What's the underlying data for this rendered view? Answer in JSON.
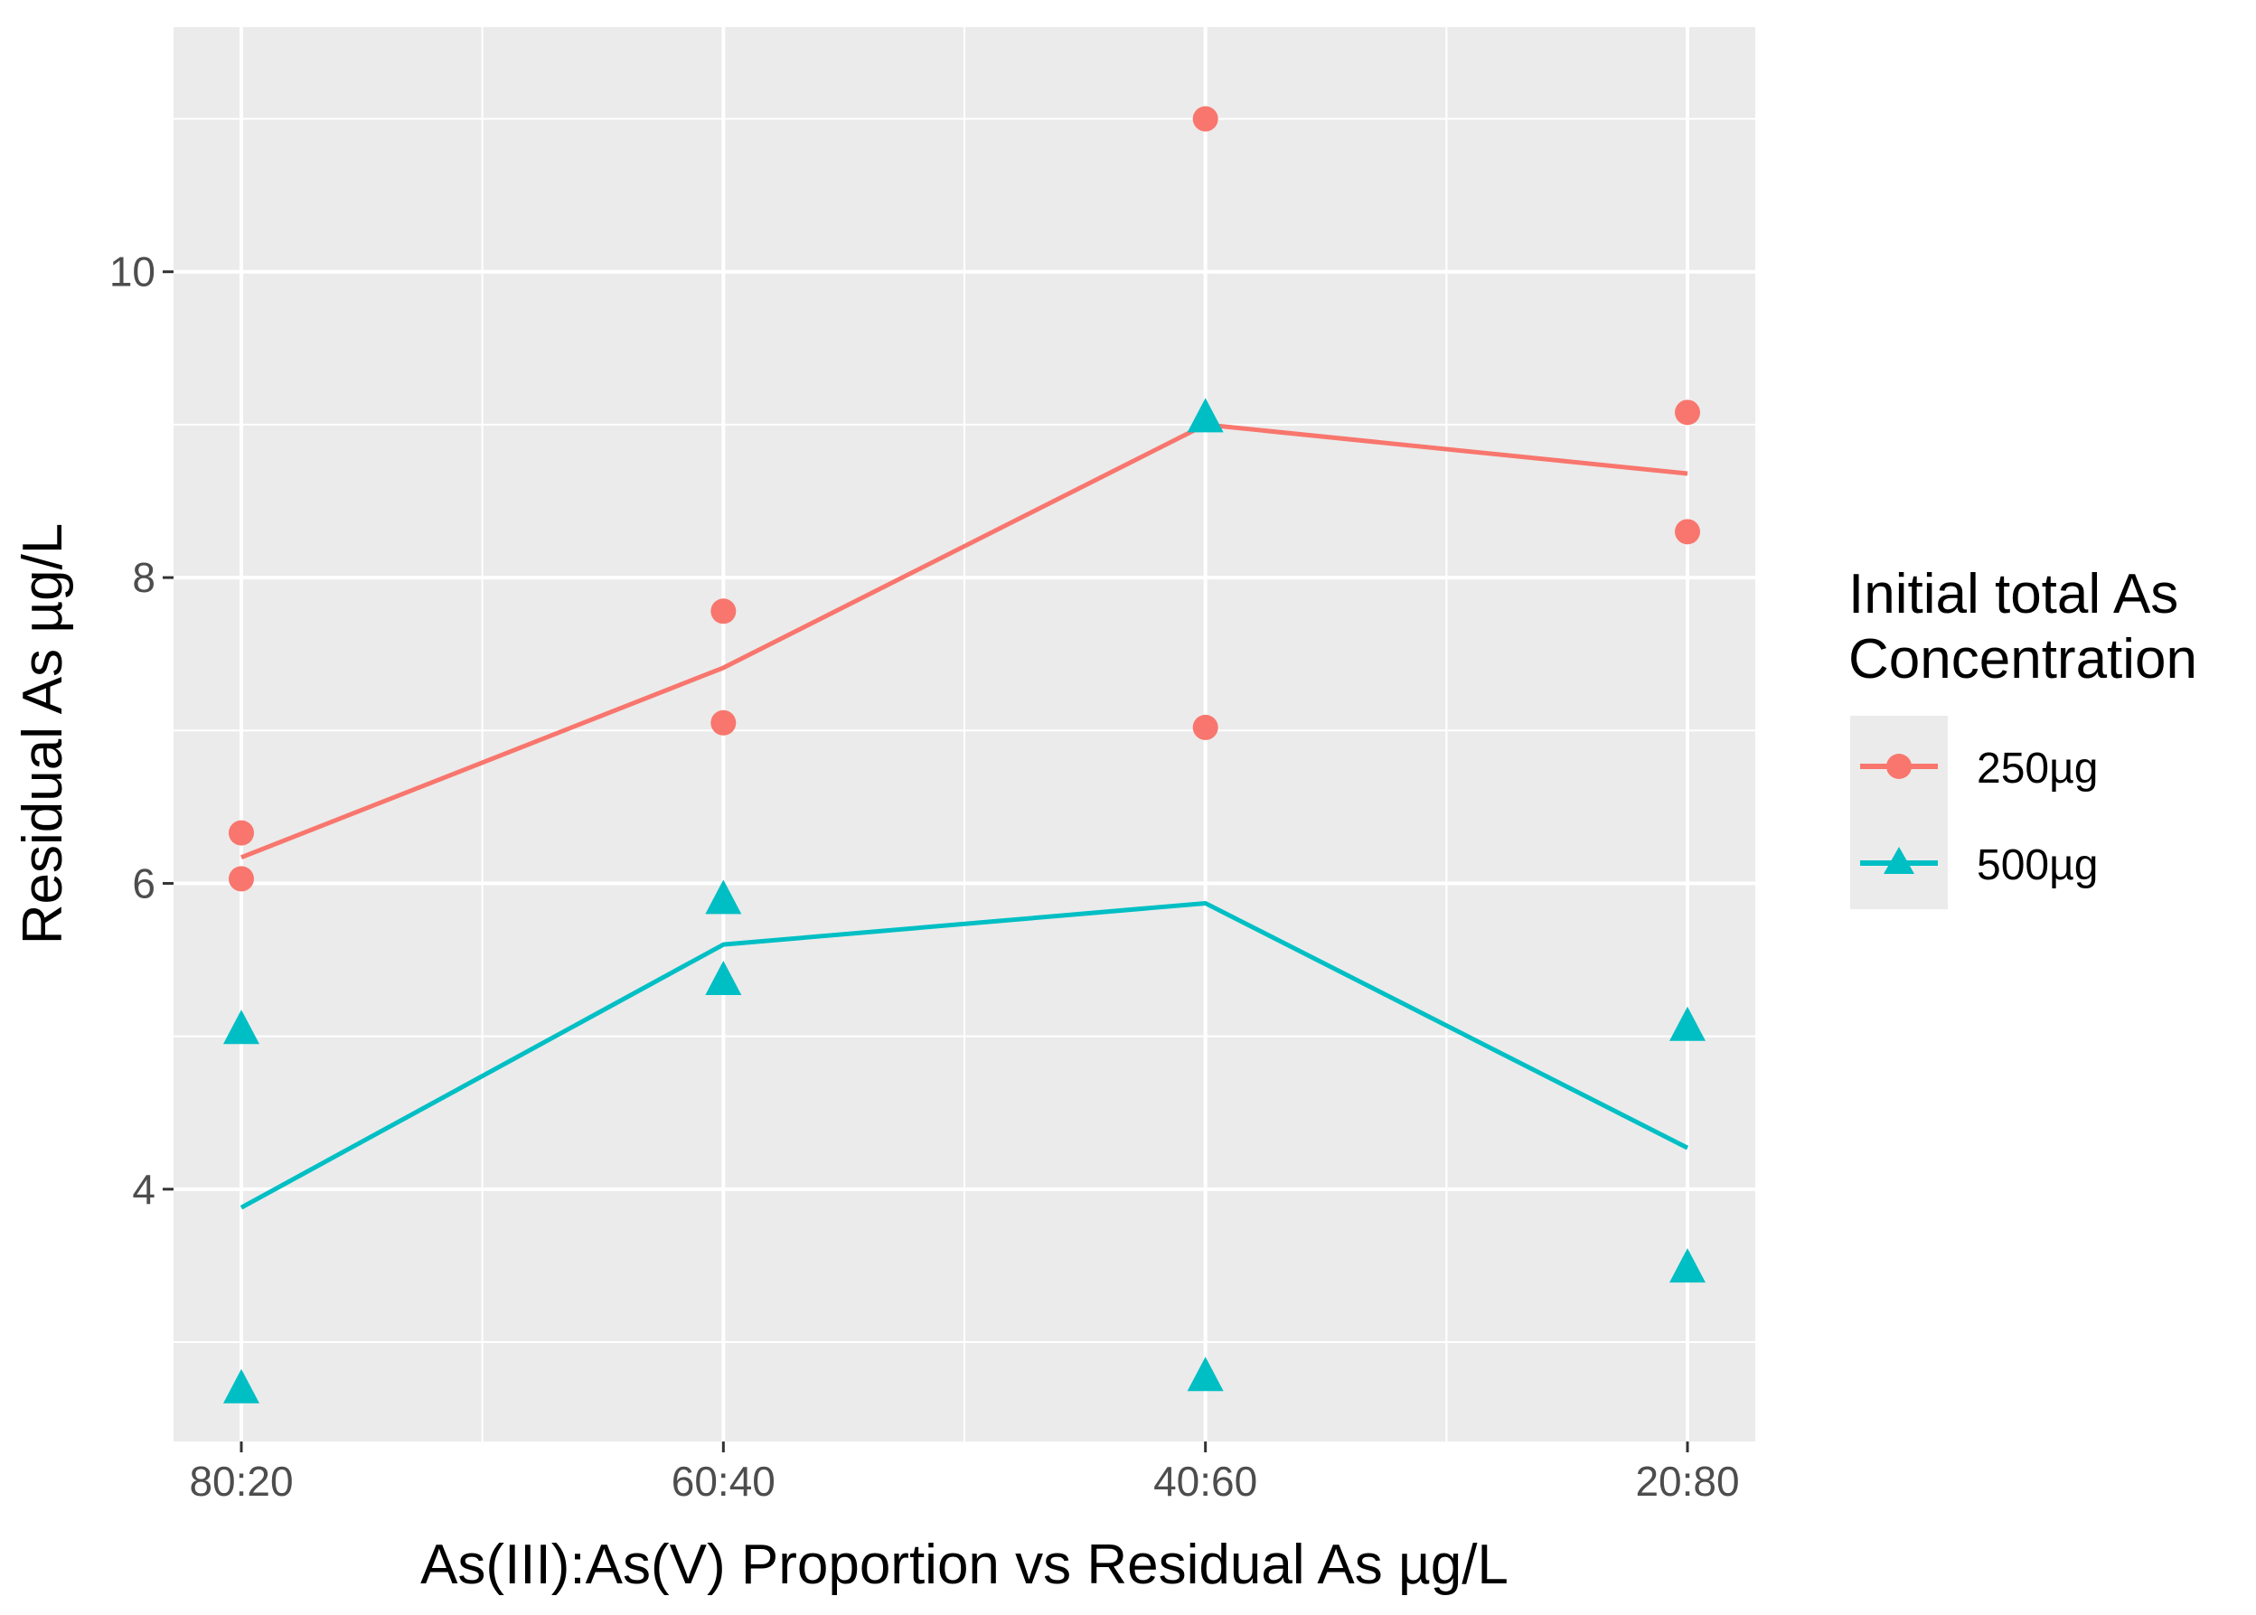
{
  "chart_data": {
    "type": "line",
    "title": "",
    "xlabel": "As(III):As(V) Proportion vs Residual As µg/L",
    "ylabel": "Residual As µg/L",
    "categories": [
      "80:20",
      "60:40",
      "40:60",
      "20:80"
    ],
    "ylim": [
      2.35,
      11.6
    ],
    "yticks": [
      4,
      6,
      8,
      10
    ],
    "grid": true,
    "legend": {
      "title_lines": [
        "Initial total As",
        "Concentration"
      ],
      "placement": "right"
    },
    "series": [
      {
        "name": "250µg",
        "color": "#F8766D",
        "marker": "circle",
        "line": [
          6.17,
          7.41,
          9.0,
          8.68
        ],
        "points": [
          {
            "x": "80:20",
            "y": 6.33
          },
          {
            "x": "80:20",
            "y": 6.03
          },
          {
            "x": "60:40",
            "y": 7.78
          },
          {
            "x": "60:40",
            "y": 7.05
          },
          {
            "x": "40:60",
            "y": 11.0
          },
          {
            "x": "40:60",
            "y": 7.02
          },
          {
            "x": "20:80",
            "y": 9.08
          },
          {
            "x": "20:80",
            "y": 8.3
          }
        ]
      },
      {
        "name": "500µg",
        "color": "#00BFC4",
        "marker": "triangle",
        "line": [
          3.88,
          5.6,
          5.87,
          4.27
        ],
        "points": [
          {
            "x": "80:20",
            "y": 5.05
          },
          {
            "x": "80:20",
            "y": 2.7
          },
          {
            "x": "60:40",
            "y": 5.9
          },
          {
            "x": "60:40",
            "y": 5.37
          },
          {
            "x": "40:60",
            "y": 9.05
          },
          {
            "x": "40:60",
            "y": 2.78
          },
          {
            "x": "20:80",
            "y": 5.07
          },
          {
            "x": "20:80",
            "y": 3.49
          }
        ]
      }
    ]
  },
  "colors": {
    "panel_background": "#EBEBEB",
    "grid_major": "#FFFFFF",
    "tick_label": "#4D4D4D",
    "axis_tick": "#333333"
  }
}
